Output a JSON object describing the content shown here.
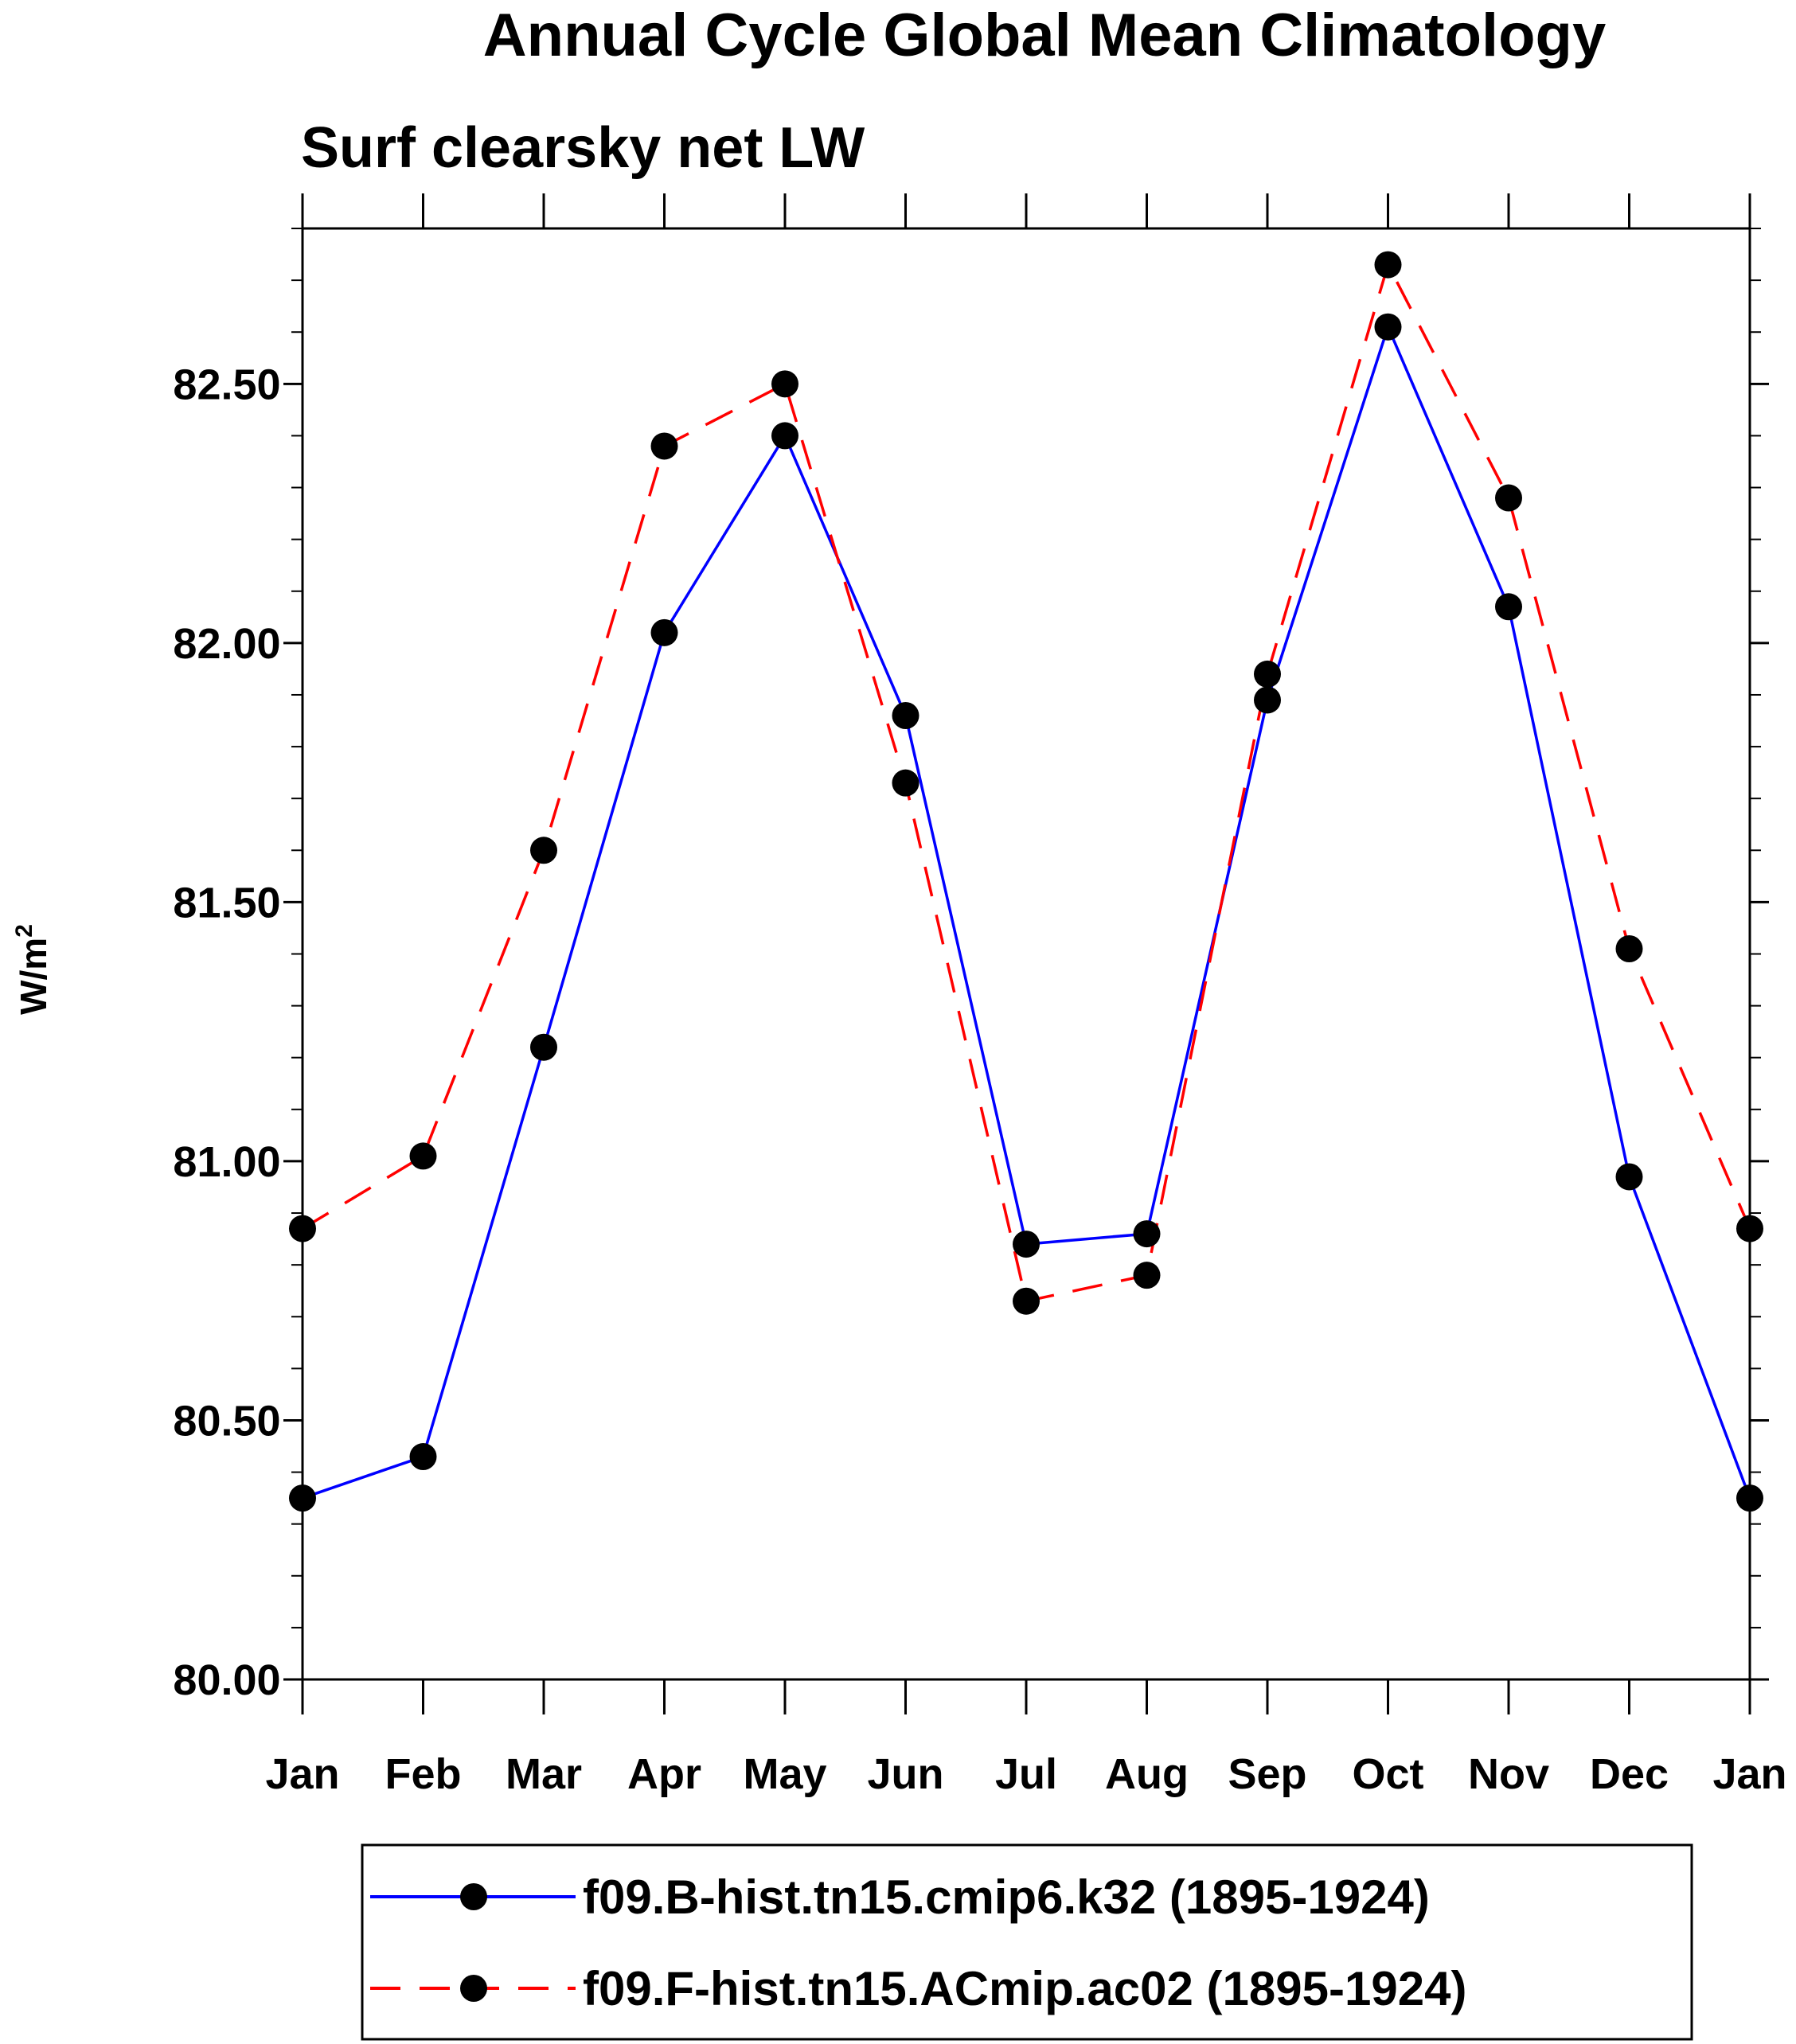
{
  "chart_data": {
    "type": "line",
    "title": "Annual Cycle Global Mean Climatology",
    "subtitle": "Surf clearsky net LW",
    "xlabel": "",
    "ylabel": "W/m",
    "ylabel_superscript": "2",
    "categories": [
      "Jan",
      "Feb",
      "Mar",
      "Apr",
      "May",
      "Jun",
      "Jul",
      "Aug",
      "Sep",
      "Oct",
      "Nov",
      "Dec",
      "Jan"
    ],
    "yticks": [
      "80.00",
      "80.50",
      "81.00",
      "81.50",
      "82.00",
      "82.50"
    ],
    "ylim": [
      80.0,
      82.8
    ],
    "grid": false,
    "legend_position": "bottom",
    "series": [
      {
        "name": "f09.B-hist.tn15.cmip6.k32 (1895-1924)",
        "color": "#0000ff",
        "line_style": "solid",
        "marker": "filled-circle",
        "values": [
          80.35,
          80.43,
          81.22,
          82.02,
          82.4,
          81.86,
          80.84,
          80.86,
          81.89,
          82.61,
          82.07,
          80.97,
          80.35
        ]
      },
      {
        "name": "f09.F-hist.tn15.ACmip.ac02 (1895-1924)",
        "color": "#ff0000",
        "line_style": "dashed",
        "marker": "filled-circle",
        "values": [
          80.87,
          81.01,
          81.6,
          82.38,
          82.5,
          81.73,
          80.73,
          80.78,
          81.94,
          82.73,
          82.28,
          81.41,
          80.87
        ]
      }
    ]
  }
}
